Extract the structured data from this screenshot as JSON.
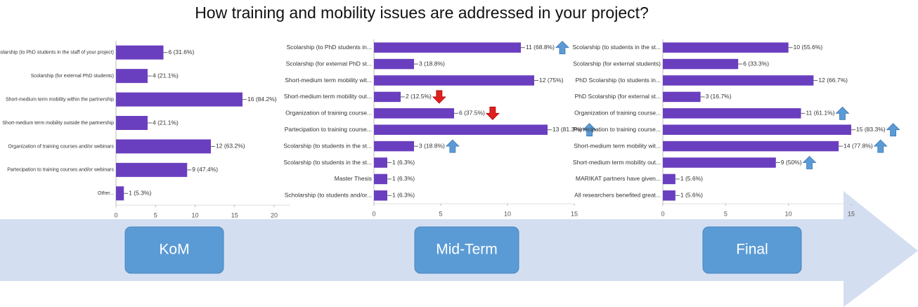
{
  "title": "How training and mobility issues are addressed in your project?",
  "stages": [
    "KoM",
    "Mid-Term",
    "Final"
  ],
  "chart_data": [
    {
      "type": "bar",
      "orientation": "horizontal",
      "color": "#6a3fbf",
      "xlim": [
        0,
        22
      ],
      "xticks": [
        0,
        5,
        10,
        15,
        20
      ],
      "categories": [
        "Scolarship (to PhD students in the staff of your project)",
        "Scolarship (for external PhD students)",
        "Short-medium term mobility within the partnership",
        "Short-medium term mobility outside the partnership",
        "Organization of training courses and/or webinars",
        "Partecipation to training courses and/or webinars",
        "Other..."
      ],
      "values": [
        6,
        4,
        16,
        4,
        12,
        9,
        1
      ],
      "value_labels": [
        "6 (31.6%)",
        "4 (21.1%)",
        "16 (84.2%)",
        "4 (21.1%)",
        "12 (63.2%)",
        "9 (47.4%)",
        "1 (5.3%)"
      ],
      "trends": [
        null,
        null,
        null,
        null,
        null,
        null,
        null
      ]
    },
    {
      "type": "bar",
      "orientation": "horizontal",
      "color": "#6a3fbf",
      "xlim": [
        0,
        15
      ],
      "xticks": [
        0,
        5,
        10,
        15
      ],
      "categories": [
        "Scolarship (to PhD students in...",
        "Scolarship (for external PhD st...",
        "Short-medium term mobility wit...",
        "Short-medium term mobility out...",
        "Organization of training course...",
        "Partecipation to training course...",
        "Scolarship (to students in the st...",
        "Scolarship (to students in the st...",
        "Master Thesis",
        "Scholarship (to students and/or..."
      ],
      "values": [
        11,
        3,
        12,
        2,
        6,
        13,
        3,
        1,
        1,
        1
      ],
      "value_labels": [
        "11 (68.8%)",
        "3 (18.8%)",
        "12 (75%)",
        "2 (12.5%)",
        "6 (37.5%)",
        "13 (81.3%)",
        "3 (18.8%)",
        "1 (6.3%)",
        "1 (6.3%)",
        "1 (6.3%)"
      ],
      "trends": [
        "up",
        null,
        null,
        "down",
        "down",
        "up",
        "up",
        null,
        null,
        null
      ]
    },
    {
      "type": "bar",
      "orientation": "horizontal",
      "color": "#6a3fbf",
      "xlim": [
        0,
        15
      ],
      "xticks": [
        0,
        5,
        10,
        15
      ],
      "categories": [
        "Scolarship (to students in the st...",
        "Scolarship (for external students)",
        "PhD Scolarship (to students in...",
        "PhD Scolarship (for external st...",
        "Organization of training course...",
        "Partecipation to training course...",
        "Short-medium term mobility wit...",
        "Short-medium term mobility out...",
        "MARIKAT partners have given...",
        "All researchers benefited great..."
      ],
      "values": [
        10,
        6,
        12,
        3,
        11,
        15,
        14,
        9,
        1,
        1
      ],
      "value_labels": [
        "10 (55.6%)",
        "6 (33.3%)",
        "12 (66.7%)",
        "3 (16.7%)",
        "11 (61.1%)",
        "15 (83.3%)",
        "14 (77.8%)",
        "9 (50%)",
        "1 (5.6%)",
        "1 (5.6%)"
      ],
      "trends": [
        null,
        null,
        null,
        null,
        "up",
        "up",
        "up",
        "up",
        null,
        null
      ]
    }
  ]
}
